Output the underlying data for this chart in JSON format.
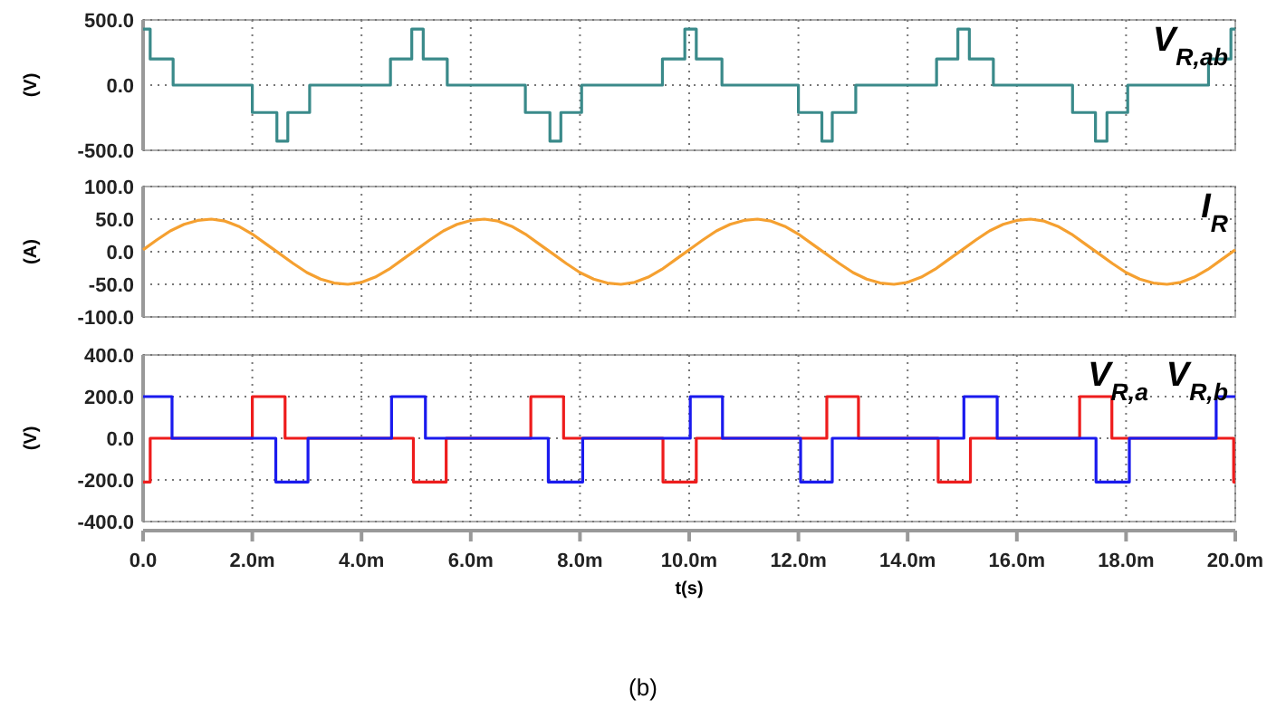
{
  "chart_data": [
    {
      "type": "step",
      "ylabel": "(V)",
      "xlim": [
        0,
        20
      ],
      "xticks": [
        0,
        2,
        4,
        6,
        8,
        10,
        12,
        14,
        16,
        18,
        20
      ],
      "ylim": [
        -500,
        500
      ],
      "yticks": [
        {
          "value": -500,
          "label": "-500.0"
        },
        {
          "value": 0,
          "label": "0.0"
        },
        {
          "value": 500,
          "label": "500.0"
        }
      ],
      "grid": true,
      "legend": "top right",
      "tick_labels": "y",
      "series": [
        {
          "name": "V$_{R,ab}$",
          "color": "#3a8a8a",
          "x": [
            0,
            0.13,
            0.55,
            2.0,
            2.45,
            2.65,
            3.05,
            4.53,
            4.92,
            5.13,
            5.57,
            7.0,
            7.45,
            7.65,
            8.03,
            9.51,
            9.92,
            10.13,
            10.6,
            12.0,
            12.43,
            12.62,
            13.05,
            14.53,
            14.92,
            15.13,
            15.57,
            17.02,
            17.44,
            17.65,
            18.03,
            19.51,
            19.92,
            20
          ],
          "values": [
            430,
            200,
            0,
            -210,
            -430,
            -210,
            0,
            200,
            430,
            200,
            0,
            -210,
            -430,
            -210,
            0,
            200,
            430,
            200,
            0,
            -210,
            -430,
            -210,
            0,
            200,
            430,
            200,
            0,
            -210,
            -430,
            -210,
            0,
            200,
            430,
            430
          ]
        }
      ]
    },
    {
      "type": "line",
      "ylabel": "(A)",
      "xlim": [
        0,
        20
      ],
      "xticks": [
        0,
        2,
        4,
        6,
        8,
        10,
        12,
        14,
        16,
        18,
        20
      ],
      "ylim": [
        -100,
        100
      ],
      "yticks": [
        {
          "value": -100,
          "label": "-100.0"
        },
        {
          "value": -50,
          "label": "-50.0"
        },
        {
          "value": 0,
          "label": "0.0"
        },
        {
          "value": 50,
          "label": "50.0"
        },
        {
          "value": 100,
          "label": "100.0"
        }
      ],
      "grid": true,
      "legend": "top right",
      "tick_labels": "y",
      "series": [
        {
          "name": "I$_{R}$",
          "color": "#f5a030",
          "x": [
            0,
            0.25,
            0.5,
            0.75,
            1,
            1.25,
            1.5,
            1.75,
            2,
            2.25,
            2.5,
            2.75,
            3,
            3.25,
            3.5,
            3.75,
            4,
            4.25,
            4.5,
            4.75,
            5,
            5.25,
            5.5,
            5.75,
            6,
            6.25,
            6.5,
            6.75,
            7,
            7.25,
            7.5,
            7.75,
            8,
            8.25,
            8.5,
            8.75,
            9,
            9.25,
            9.5,
            9.75,
            10,
            10.25,
            10.5,
            10.75,
            11,
            11.25,
            11.5,
            11.75,
            12,
            12.25,
            12.5,
            12.75,
            13,
            13.25,
            13.5,
            13.75,
            14,
            14.25,
            14.5,
            14.75,
            15,
            15.25,
            15.5,
            15.75,
            16,
            16.25,
            16.5,
            16.75,
            17,
            17.25,
            17.5,
            17.75,
            18,
            18.25,
            18.5,
            18.75,
            19,
            19.25,
            19.5,
            19.75,
            20
          ],
          "values": [
            3,
            18,
            32,
            42,
            48,
            50,
            47,
            39,
            27,
            12,
            -3,
            -18,
            -32,
            -42,
            -48,
            -50,
            -47,
            -39,
            -27,
            -12,
            3,
            18,
            32,
            42,
            48,
            50,
            47,
            39,
            27,
            12,
            -3,
            -18,
            -32,
            -42,
            -48,
            -50,
            -47,
            -39,
            -27,
            -12,
            3,
            18,
            32,
            42,
            48,
            50,
            47,
            39,
            27,
            12,
            -3,
            -18,
            -32,
            -42,
            -48,
            -50,
            -47,
            -39,
            -27,
            -12,
            3,
            18,
            32,
            42,
            48,
            50,
            47,
            39,
            27,
            12,
            -3,
            -18,
            -32,
            -42,
            -48,
            -50,
            -47,
            -39,
            -27,
            -12,
            3
          ]
        }
      ]
    },
    {
      "type": "step",
      "ylabel": "(V)",
      "xlabel": "t(s)",
      "xlim": [
        0,
        20
      ],
      "xticks": [
        {
          "value": 0,
          "label": "0.0"
        },
        {
          "value": 2,
          "label": "2.0m"
        },
        {
          "value": 4,
          "label": "4.0m"
        },
        {
          "value": 6,
          "label": "6.0m"
        },
        {
          "value": 8,
          "label": "8.0m"
        },
        {
          "value": 10,
          "label": "10.0m"
        },
        {
          "value": 12,
          "label": "12.0m"
        },
        {
          "value": 14,
          "label": "14.0m"
        },
        {
          "value": 16,
          "label": "16.0m"
        },
        {
          "value": 18,
          "label": "18.0m"
        },
        {
          "value": 20,
          "label": "20.0m"
        }
      ],
      "ylim": [
        -400,
        400
      ],
      "yticks": [
        {
          "value": -400,
          "label": "-400.0"
        },
        {
          "value": -200,
          "label": "-200.0"
        },
        {
          "value": 0,
          "label": "0.0"
        },
        {
          "value": 200,
          "label": "200.0"
        },
        {
          "value": 400,
          "label": "400.0"
        }
      ],
      "grid": true,
      "legend": "top right",
      "annotations": [
        "(b)"
      ],
      "series": [
        {
          "name": "V$_{R,a}$",
          "color": "#ee1c1c",
          "x": [
            0,
            0.13,
            2.0,
            2.6,
            4.95,
            5.55,
            7.1,
            7.7,
            9.52,
            10.13,
            12.52,
            13.1,
            14.56,
            15.15,
            17.15,
            17.74,
            19.97,
            20
          ],
          "values": [
            -210,
            0,
            200,
            0,
            -210,
            0,
            200,
            0,
            -210,
            0,
            200,
            0,
            -210,
            0,
            200,
            0,
            -210,
            -210
          ]
        },
        {
          "name": "V$_{R,b}$",
          "color": "#1a1aee",
          "x": [
            0,
            0.53,
            2.43,
            3.02,
            4.55,
            5.17,
            7.42,
            8.05,
            10.02,
            10.61,
            12.04,
            12.62,
            15.03,
            15.64,
            17.45,
            18.06,
            19.65,
            20
          ],
          "values": [
            200,
            0,
            -210,
            0,
            200,
            0,
            -210,
            0,
            200,
            0,
            -210,
            0,
            200,
            0,
            -210,
            0,
            200,
            200
          ]
        }
      ]
    }
  ]
}
